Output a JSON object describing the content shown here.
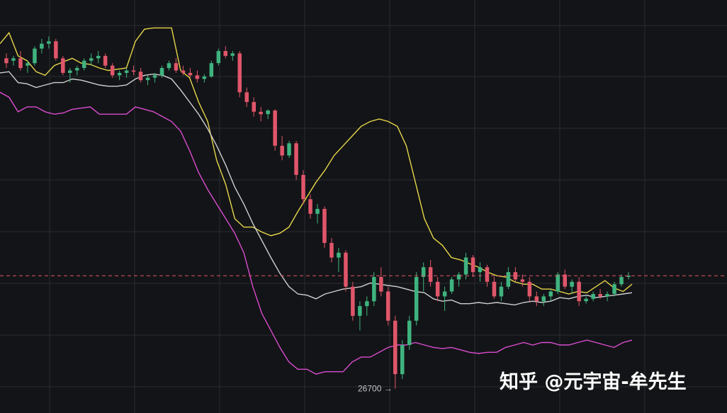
{
  "chart_data": {
    "type": "candlestick",
    "title": "",
    "xlabel": "",
    "ylabel": "",
    "ylim": [
      26600,
      28300
    ],
    "grid": true,
    "colors": {
      "background": "#131417",
      "grid": "#2a2c31",
      "up": "#3fb37f",
      "down": "#e0566a",
      "upper_band": "#e6d64a",
      "middle_band": "#cfcfcf",
      "lower_band": "#d94ccf",
      "price_line": "#e0566a"
    },
    "current_price_line": 27165,
    "annotations": [
      {
        "text": "26700 →",
        "value": 26700
      }
    ],
    "series": [
      {
        "name": "",
        "values": [
          28120,
          28165,
          28070,
          28050,
          28005,
          27990,
          28030,
          28045,
          28060,
          28040,
          28035,
          28020,
          28010,
          28015,
          28020,
          28130,
          28180,
          28185,
          28185,
          28185,
          28010,
          27980,
          27880,
          27800,
          27640,
          27540,
          27400,
          27365,
          27365,
          27345,
          27330,
          27340,
          27365,
          27430,
          27490,
          27550,
          27600,
          27660,
          27700,
          27740,
          27780,
          27800,
          27810,
          27800,
          27780,
          27700,
          27550,
          27400,
          27320,
          27290,
          27240,
          27230,
          27215,
          27200,
          27180,
          27165,
          27160,
          27140,
          27130,
          27130,
          27110,
          27110,
          27100,
          27090,
          27100,
          27095,
          27120,
          27145,
          27115,
          27100,
          27130
        ]
      },
      {
        "name": "",
        "values": [
          28000,
          28005,
          27960,
          27955,
          27940,
          27950,
          27960,
          27960,
          27975,
          27970,
          27960,
          27950,
          27945,
          27945,
          27950,
          27975,
          27990,
          27995,
          27990,
          27975,
          27930,
          27880,
          27830,
          27770,
          27700,
          27620,
          27530,
          27460,
          27380,
          27310,
          27240,
          27175,
          27120,
          27090,
          27085,
          27070,
          27090,
          27100,
          27110,
          27115,
          27120,
          27135,
          27130,
          27125,
          27120,
          27110,
          27100,
          27095,
          27070,
          27060,
          27065,
          27050,
          27050,
          27055,
          27050,
          27055,
          27050,
          27045,
          27055,
          27060,
          27055,
          27060,
          27075,
          27070,
          27080,
          27085,
          27075,
          27080,
          27085,
          27090,
          27095
        ]
      },
      {
        "name": "",
        "values": [
          27920,
          27900,
          27840,
          27860,
          27860,
          27840,
          27830,
          27835,
          27850,
          27855,
          27860,
          27830,
          27830,
          27830,
          27830,
          27860,
          27850,
          27840,
          27820,
          27800,
          27760,
          27680,
          27590,
          27520,
          27460,
          27400,
          27340,
          27260,
          27120,
          27010,
          26940,
          26870,
          26810,
          26780,
          26780,
          26760,
          26770,
          26770,
          26770,
          26810,
          26830,
          26830,
          26850,
          26870,
          26880,
          26880,
          26890,
          26880,
          26870,
          26865,
          26870,
          26860,
          26850,
          26845,
          26850,
          26850,
          26870,
          26880,
          26890,
          26880,
          26890,
          26890,
          26880,
          26880,
          26890,
          26900,
          26890,
          26880,
          26870,
          26890,
          26900
        ]
      }
    ],
    "candles": [
      [
        28060,
        28080,
        28020,
        28040
      ],
      [
        28050,
        28070,
        28030,
        28060
      ],
      [
        28060,
        28090,
        28010,
        28020
      ],
      [
        28030,
        28050,
        28000,
        28040
      ],
      [
        28040,
        28110,
        28030,
        28100
      ],
      [
        28100,
        28140,
        28080,
        28120
      ],
      [
        28120,
        28150,
        28100,
        28130
      ],
      [
        28130,
        28140,
        28050,
        28060
      ],
      [
        28060,
        28070,
        27990,
        28000
      ],
      [
        28000,
        28020,
        27960,
        28010
      ],
      [
        28010,
        28030,
        27990,
        28020
      ],
      [
        28020,
        28060,
        28010,
        28050
      ],
      [
        28050,
        28080,
        28030,
        28060
      ],
      [
        28060,
        28090,
        28040,
        28070
      ],
      [
        28070,
        28080,
        28020,
        28030
      ],
      [
        28030,
        28040,
        27980,
        27990
      ],
      [
        27990,
        28010,
        27970,
        28000
      ],
      [
        28000,
        28020,
        27980,
        28010
      ],
      [
        28010,
        28030,
        27990,
        28005
      ],
      [
        28005,
        28020,
        27960,
        27970
      ],
      [
        27970,
        27990,
        27950,
        27980
      ],
      [
        27980,
        28000,
        27960,
        27990
      ],
      [
        27990,
        28030,
        27980,
        28020
      ],
      [
        28020,
        28050,
        28010,
        28040
      ],
      [
        28040,
        28060,
        28000,
        28010
      ],
      [
        28010,
        28030,
        27990,
        28000
      ],
      [
        28000,
        28020,
        27980,
        27990
      ],
      [
        27990,
        28010,
        27960,
        27975
      ],
      [
        27975,
        27995,
        27960,
        27985
      ],
      [
        27985,
        28050,
        27980,
        28040
      ],
      [
        28040,
        28100,
        28030,
        28090
      ],
      [
        28090,
        28110,
        28060,
        28070
      ],
      [
        28070,
        28090,
        28050,
        28080
      ],
      [
        28080,
        28090,
        27900,
        27920
      ],
      [
        27920,
        27940,
        27860,
        27880
      ],
      [
        27880,
        27900,
        27820,
        27840
      ],
      [
        27840,
        27860,
        27800,
        27830
      ],
      [
        27830,
        27850,
        27810,
        27845
      ],
      [
        27845,
        27850,
        27680,
        27700
      ],
      [
        27700,
        27740,
        27640,
        27660
      ],
      [
        27660,
        27720,
        27650,
        27710
      ],
      [
        27710,
        27720,
        27560,
        27580
      ],
      [
        27580,
        27600,
        27460,
        27480
      ],
      [
        27480,
        27500,
        27400,
        27420
      ],
      [
        27420,
        27460,
        27380,
        27440
      ],
      [
        27440,
        27450,
        27280,
        27300
      ],
      [
        27300,
        27320,
        27220,
        27240
      ],
      [
        27240,
        27280,
        27180,
        27260
      ],
      [
        27260,
        27270,
        27100,
        27120
      ],
      [
        27120,
        27140,
        26980,
        27000
      ],
      [
        27000,
        27060,
        26940,
        27040
      ],
      [
        27040,
        27080,
        27000,
        27060
      ],
      [
        27060,
        27180,
        27040,
        27160
      ],
      [
        27160,
        27200,
        27080,
        27100
      ],
      [
        27100,
        27120,
        26960,
        26980
      ],
      [
        26980,
        27000,
        26700,
        26760
      ],
      [
        26760,
        26900,
        26740,
        26880
      ],
      [
        26880,
        27000,
        26860,
        26980
      ],
      [
        26980,
        27180,
        26960,
        27160
      ],
      [
        27160,
        27220,
        27100,
        27200
      ],
      [
        27200,
        27230,
        27120,
        27140
      ],
      [
        27140,
        27160,
        27060,
        27080
      ],
      [
        27080,
        27120,
        27020,
        27100
      ],
      [
        27100,
        27160,
        27090,
        27150
      ],
      [
        27150,
        27180,
        27120,
        27170
      ],
      [
        27170,
        27260,
        27150,
        27240
      ],
      [
        27240,
        27250,
        27160,
        27180
      ],
      [
        27180,
        27220,
        27140,
        27200
      ],
      [
        27200,
        27210,
        27120,
        27140
      ],
      [
        27140,
        27160,
        27070,
        27080
      ],
      [
        27080,
        27140,
        27060,
        27120
      ],
      [
        27120,
        27200,
        27110,
        27180
      ],
      [
        27180,
        27200,
        27140,
        27150
      ],
      [
        27150,
        27170,
        27120,
        27140
      ],
      [
        27140,
        27160,
        27060,
        27080
      ],
      [
        27080,
        27100,
        27040,
        27060
      ],
      [
        27060,
        27090,
        27040,
        27080
      ],
      [
        27080,
        27110,
        27060,
        27100
      ],
      [
        27100,
        27180,
        27090,
        27170
      ],
      [
        27170,
        27190,
        27110,
        27120
      ],
      [
        27120,
        27150,
        27090,
        27140
      ],
      [
        27140,
        27160,
        27040,
        27060
      ],
      [
        27060,
        27080,
        27050,
        27070
      ],
      [
        27070,
        27100,
        27060,
        27090
      ],
      [
        27090,
        27110,
        27070,
        27080
      ],
      [
        27080,
        27100,
        27060,
        27090
      ],
      [
        27090,
        27140,
        27080,
        27130
      ],
      [
        27130,
        27170,
        27120,
        27160
      ],
      [
        27160,
        27180,
        27150,
        27165
      ]
    ]
  },
  "watermark": {
    "text": "知乎 @元宇宙-牟先生"
  }
}
